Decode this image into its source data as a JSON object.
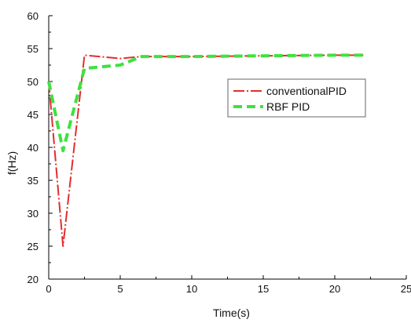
{
  "chart_data": {
    "type": "line",
    "xlabel": "Time(s)",
    "ylabel": "f(Hz)",
    "xlim": [
      0,
      25
    ],
    "ylim": [
      20,
      60
    ],
    "xticks": [
      "0",
      "5",
      "10",
      "15",
      "20",
      "25"
    ],
    "yticks": [
      "20",
      "25",
      "30",
      "35",
      "40",
      "45",
      "50",
      "55",
      "60"
    ],
    "grid": false,
    "legend_position": "right",
    "series": [
      {
        "name": "conventionalPID",
        "color": "#e32d2d",
        "line_style": "dash-dot",
        "x": [
          0,
          1,
          2.5,
          5,
          6.5,
          10,
          15,
          20,
          22
        ],
        "y": [
          50,
          25,
          54,
          53.5,
          53.8,
          53.8,
          53.9,
          54,
          54
        ]
      },
      {
        "name": "RBF PID",
        "color": "#3ee23e",
        "line_style": "dash",
        "x": [
          0,
          1,
          2.5,
          5,
          6.5,
          10,
          15,
          20,
          22
        ],
        "y": [
          50,
          39.5,
          52,
          52.5,
          53.8,
          53.8,
          53.9,
          54,
          54
        ]
      }
    ]
  }
}
